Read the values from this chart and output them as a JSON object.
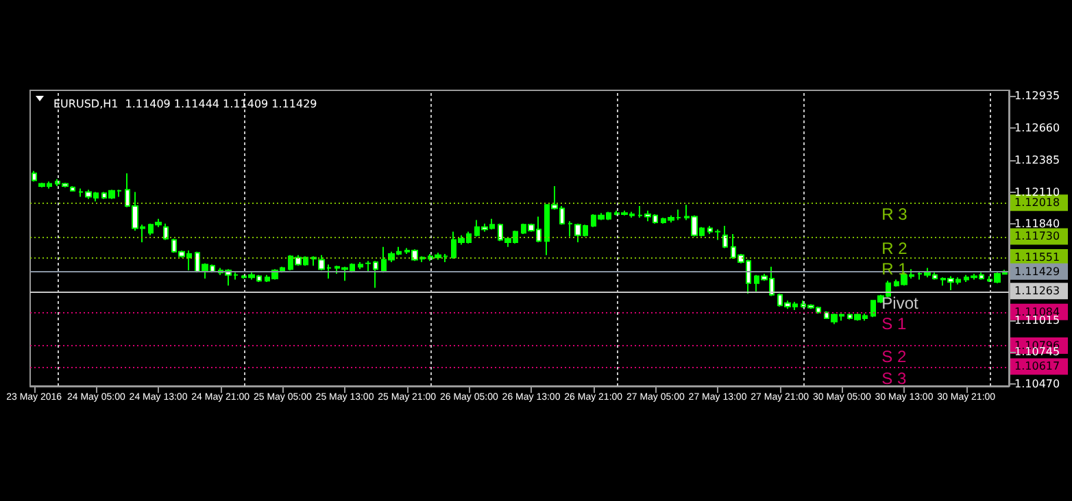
{
  "chart_data": {
    "type": "candlestick",
    "title": "EURUSD,H1  1.11409 1.11444 1.11409 1.11429",
    "color": "#00ff00",
    "categories": [
      "23 May 2016",
      null,
      null,
      null,
      null,
      null,
      null,
      null,
      "24 May 05:00",
      null,
      null,
      null,
      null,
      null,
      null,
      null,
      "24 May 13:00",
      null,
      null,
      null,
      null,
      null,
      null,
      null,
      "24 May 21:00",
      null,
      null,
      null,
      null,
      null,
      null,
      null,
      "25 May 05:00",
      null,
      null,
      null,
      null,
      null,
      null,
      null,
      "25 May 13:00",
      null,
      null,
      null,
      null,
      null,
      null,
      null,
      "25 May 21:00",
      null,
      null,
      null,
      null,
      null,
      null,
      null,
      "26 May 05:00",
      null,
      null,
      null,
      null,
      null,
      null,
      null,
      "26 May 13:00",
      null,
      null,
      null,
      null,
      null,
      null,
      null,
      "26 May 21:00",
      null,
      null,
      null,
      null,
      null,
      null,
      null,
      "27 May 05:00",
      null,
      null,
      null,
      null,
      null,
      null,
      null,
      "27 May 13:00",
      null,
      null,
      null,
      null,
      null,
      null,
      null,
      "27 May 21:00",
      null,
      null,
      null,
      null,
      null,
      null,
      null,
      "30 May 05:00",
      null,
      null,
      null,
      null,
      null,
      null,
      null,
      "30 May 13:00",
      null,
      null,
      null,
      null,
      null,
      null,
      null,
      "30 May 21:00",
      null,
      null,
      null,
      null,
      null
    ],
    "ohlc": [
      [
        1.1227,
        1.1229,
        1.122,
        1.1221
      ],
      [
        1.1216,
        1.1219,
        1.1215,
        1.1218
      ],
      [
        1.1216,
        1.122,
        1.1214,
        1.1218
      ],
      [
        1.1218,
        1.1222,
        1.1216,
        1.122
      ],
      [
        1.1218,
        1.1219,
        1.1215,
        1.1216
      ],
      [
        1.1215,
        1.1216,
        1.1212,
        1.1212
      ],
      [
        1.1211,
        1.1214,
        1.1207,
        1.1211
      ],
      [
        1.1211,
        1.1213,
        1.1205,
        1.1207
      ],
      [
        1.1206,
        1.1211,
        1.1203,
        1.121
      ],
      [
        1.121,
        1.1211,
        1.1205,
        1.1206
      ],
      [
        1.1206,
        1.1213,
        1.1205,
        1.1212
      ],
      [
        1.1212,
        1.1213,
        1.1207,
        1.1212
      ],
      [
        1.1213,
        1.1227,
        1.1198,
        1.1199
      ],
      [
        1.1199,
        1.1211,
        1.1178,
        1.118
      ],
      [
        1.118,
        1.1183,
        1.1168,
        1.1181
      ],
      [
        1.1176,
        1.1184,
        1.1174,
        1.1183
      ],
      [
        1.1183,
        1.1188,
        1.1181,
        1.1185
      ],
      [
        1.1181,
        1.1184,
        1.117,
        1.1171
      ],
      [
        1.117,
        1.1171,
        1.1159,
        1.116
      ],
      [
        1.116,
        1.1161,
        1.1155,
        1.1156
      ],
      [
        1.1155,
        1.1161,
        1.1144,
        1.1158
      ],
      [
        1.1159,
        1.116,
        1.1142,
        1.1143
      ],
      [
        1.1143,
        1.115,
        1.1137,
        1.1149
      ],
      [
        1.1148,
        1.1149,
        1.1142,
        1.1143
      ],
      [
        1.1142,
        1.1146,
        1.114,
        1.1144
      ],
      [
        1.1144,
        1.1145,
        1.1131,
        1.114
      ],
      [
        1.114,
        1.1142,
        1.1136,
        1.114
      ],
      [
        1.1139,
        1.114,
        1.1137,
        1.1138
      ],
      [
        1.1138,
        1.1142,
        1.1136,
        1.114
      ],
      [
        1.1139,
        1.114,
        1.1134,
        1.1135
      ],
      [
        1.1135,
        1.114,
        1.1134,
        1.1138
      ],
      [
        1.1137,
        1.1145,
        1.1136,
        1.1144
      ],
      [
        1.1143,
        1.1147,
        1.1142,
        1.1146
      ],
      [
        1.1145,
        1.1157,
        1.1144,
        1.1156
      ],
      [
        1.1155,
        1.1157,
        1.1148,
        1.1149
      ],
      [
        1.1149,
        1.1156,
        1.1148,
        1.1155
      ],
      [
        1.1155,
        1.1156,
        1.1148,
        1.1154
      ],
      [
        1.1153,
        1.1157,
        1.1144,
        1.1145
      ],
      [
        1.1146,
        1.1149,
        1.1137,
        1.1146
      ],
      [
        1.1146,
        1.1148,
        1.1141,
        1.1147
      ],
      [
        1.1146,
        1.1147,
        1.1135,
        1.1145
      ],
      [
        1.1143,
        1.115,
        1.1142,
        1.1149
      ],
      [
        1.1147,
        1.1151,
        1.1145,
        1.1149
      ],
      [
        1.115,
        1.1152,
        1.1143,
        1.115
      ],
      [
        1.1151,
        1.1152,
        1.1129,
        1.1145
      ],
      [
        1.1144,
        1.1164,
        1.1142,
        1.1153
      ],
      [
        1.1153,
        1.116,
        1.1151,
        1.1158
      ],
      [
        1.1158,
        1.1164,
        1.1157,
        1.116
      ],
      [
        1.116,
        1.1163,
        1.1158,
        1.1161
      ],
      [
        1.1161,
        1.1162,
        1.1152,
        1.1153
      ],
      [
        1.1155,
        1.1156,
        1.1151,
        1.1154
      ],
      [
        1.1154,
        1.1158,
        1.1152,
        1.1156
      ],
      [
        1.1155,
        1.1159,
        1.1153,
        1.1157
      ],
      [
        1.1156,
        1.1158,
        1.1151,
        1.1156
      ],
      [
        1.1155,
        1.1177,
        1.1154,
        1.117
      ],
      [
        1.1168,
        1.1174,
        1.1166,
        1.1171
      ],
      [
        1.1168,
        1.1177,
        1.1167,
        1.1175
      ],
      [
        1.1174,
        1.1187,
        1.1173,
        1.1181
      ],
      [
        1.1181,
        1.1184,
        1.1177,
        1.1179
      ],
      [
        1.118,
        1.1188,
        1.1179,
        1.1183
      ],
      [
        1.1183,
        1.1184,
        1.1169,
        1.117
      ],
      [
        1.1168,
        1.1172,
        1.1164,
        1.1171
      ],
      [
        1.1168,
        1.1178,
        1.1167,
        1.1177
      ],
      [
        1.1176,
        1.1184,
        1.1175,
        1.1183
      ],
      [
        1.1183,
        1.1184,
        1.1177,
        1.1178
      ],
      [
        1.1179,
        1.119,
        1.1168,
        1.1169
      ],
      [
        1.1169,
        1.12,
        1.1157,
        1.12
      ],
      [
        1.12,
        1.1216,
        1.1196,
        1.1197
      ],
      [
        1.1197,
        1.1199,
        1.1183,
        1.1184
      ],
      [
        1.1184,
        1.1186,
        1.1173,
        1.1184
      ],
      [
        1.1183,
        1.1184,
        1.1168,
        1.1174
      ],
      [
        1.1174,
        1.1183,
        1.1173,
        1.1182
      ],
      [
        1.1182,
        1.1192,
        1.1181,
        1.1191
      ],
      [
        1.1188,
        1.1193,
        1.1187,
        1.1191
      ],
      [
        1.1188,
        1.1194,
        1.1187,
        1.1193
      ],
      [
        1.1192,
        1.1195,
        1.1191,
        1.1193
      ],
      [
        1.1193,
        1.1195,
        1.1191,
        1.1192
      ],
      [
        1.1192,
        1.1194,
        1.1189,
        1.1191
      ],
      [
        1.1191,
        1.1199,
        1.1189,
        1.1191
      ],
      [
        1.1192,
        1.1195,
        1.1186,
        1.119
      ],
      [
        1.1191,
        1.1192,
        1.1184,
        1.1185
      ],
      [
        1.1185,
        1.1189,
        1.1184,
        1.1188
      ],
      [
        1.1187,
        1.1191,
        1.1185,
        1.1189
      ],
      [
        1.1189,
        1.1196,
        1.1187,
        1.1189
      ],
      [
        1.1189,
        1.12,
        1.1187,
        1.119
      ],
      [
        1.119,
        1.1191,
        1.1173,
        1.1174
      ],
      [
        1.1174,
        1.1181,
        1.1173,
        1.118
      ],
      [
        1.118,
        1.1182,
        1.1175,
        1.1177
      ],
      [
        1.1177,
        1.1179,
        1.117,
        1.1177
      ],
      [
        1.1174,
        1.1182,
        1.1163,
        1.1164
      ],
      [
        1.1164,
        1.1175,
        1.1154,
        1.1155
      ],
      [
        1.1157,
        1.1158,
        1.115,
        1.1151
      ],
      [
        1.1152,
        1.1153,
        1.1124,
        1.1133
      ],
      [
        1.1133,
        1.114,
        1.1126,
        1.1139
      ],
      [
        1.1139,
        1.1141,
        1.1135,
        1.1136
      ],
      [
        1.1137,
        1.1147,
        1.1122,
        1.1123
      ],
      [
        1.1123,
        1.1124,
        1.1113,
        1.1114
      ],
      [
        1.1116,
        1.1118,
        1.1111,
        1.1113
      ],
      [
        1.1113,
        1.1117,
        1.111,
        1.1115
      ],
      [
        1.1115,
        1.1118,
        1.1112,
        1.1113
      ],
      [
        1.1114,
        1.1115,
        1.1111,
        1.1112
      ],
      [
        1.1112,
        1.1113,
        1.1107,
        1.1108
      ],
      [
        1.1108,
        1.1109,
        1.1103,
        1.1103
      ],
      [
        1.11,
        1.1107,
        1.1098,
        1.1106
      ],
      [
        1.1105,
        1.1107,
        1.1101,
        1.1106
      ],
      [
        1.1106,
        1.1107,
        1.1102,
        1.1103
      ],
      [
        1.1102,
        1.1107,
        1.1101,
        1.1106
      ],
      [
        1.1103,
        1.1107,
        1.1101,
        1.1105
      ],
      [
        1.1105,
        1.1118,
        1.1104,
        1.1118
      ],
      [
        1.1117,
        1.1123,
        1.1116,
        1.1122
      ],
      [
        1.1122,
        1.1135,
        1.1121,
        1.1133
      ],
      [
        1.1131,
        1.1136,
        1.113,
        1.1134
      ],
      [
        1.1132,
        1.1143,
        1.1131,
        1.114
      ],
      [
        1.1139,
        1.1145,
        1.1137,
        1.114
      ],
      [
        1.1141,
        1.1143,
        1.1136,
        1.1141
      ],
      [
        1.114,
        1.1146,
        1.1138,
        1.1142
      ],
      [
        1.114,
        1.1142,
        1.1136,
        1.1137
      ],
      [
        1.1137,
        1.1138,
        1.1131,
        1.1136
      ],
      [
        1.1137,
        1.1139,
        1.1127,
        1.1134
      ],
      [
        1.1134,
        1.1138,
        1.1132,
        1.1136
      ],
      [
        1.1136,
        1.114,
        1.1134,
        1.1138
      ],
      [
        1.1138,
        1.1141,
        1.1136,
        1.1139
      ],
      [
        1.114,
        1.1142,
        1.1136,
        1.1137
      ],
      [
        1.1136,
        1.1139,
        1.1134,
        1.1135
      ],
      [
        1.1134,
        1.1142,
        1.1133,
        1.1141
      ],
      [
        1.11409,
        1.11444,
        1.11409,
        1.11429
      ]
    ],
    "ylim": [
      1.1045,
      1.1298
    ],
    "grid": "x",
    "annotations": [
      "1.12018",
      "1.11730",
      "1.11551",
      "1.11429",
      "1.11263",
      "1.11084",
      "1.10796",
      "1.10617"
    ],
    "yticks": [
      1.12935,
      {
        "value": 1.1266,
        "label": "1.12660"
      },
      1.12385,
      {
        "value": 1.1211,
        "label": "1.12110"
      },
      {
        "value": 1.1184,
        "label": "1.11840"
      },
      1.11015,
      1.10745,
      {
        "value": 1.1047,
        "label": "1.10470"
      }
    ],
    "ref_lines": [
      {
        "axis": "y",
        "value": 1.12018,
        "label": "R 3",
        "color": "#7fc000",
        "line_style": "dotted"
      },
      {
        "axis": "y",
        "value": 1.1173,
        "label": "R 2",
        "color": "#7fc000",
        "line_style": "dotted"
      },
      {
        "axis": "y",
        "value": 1.11551,
        "label": "R 1",
        "color": "#7fc000",
        "line_style": "dotted"
      },
      {
        "axis": "y",
        "value": 1.11429,
        "label": null,
        "color": "#8a96a4",
        "line_style": "solid"
      },
      {
        "axis": "y",
        "value": 1.11263,
        "label": "Pivot",
        "color": "#c8c8c8",
        "line_style": "solid"
      },
      {
        "axis": "y",
        "value": 1.11084,
        "label": "S 1",
        "color": "#d4006e",
        "line_style": "dotted"
      },
      {
        "axis": "y",
        "value": 1.10796,
        "label": "S 2",
        "color": "#d4006e",
        "line_style": "dotted"
      },
      {
        "axis": "y",
        "value": 1.10617,
        "label": "S 3",
        "color": "#d4006e",
        "line_style": "dotted"
      }
    ]
  }
}
